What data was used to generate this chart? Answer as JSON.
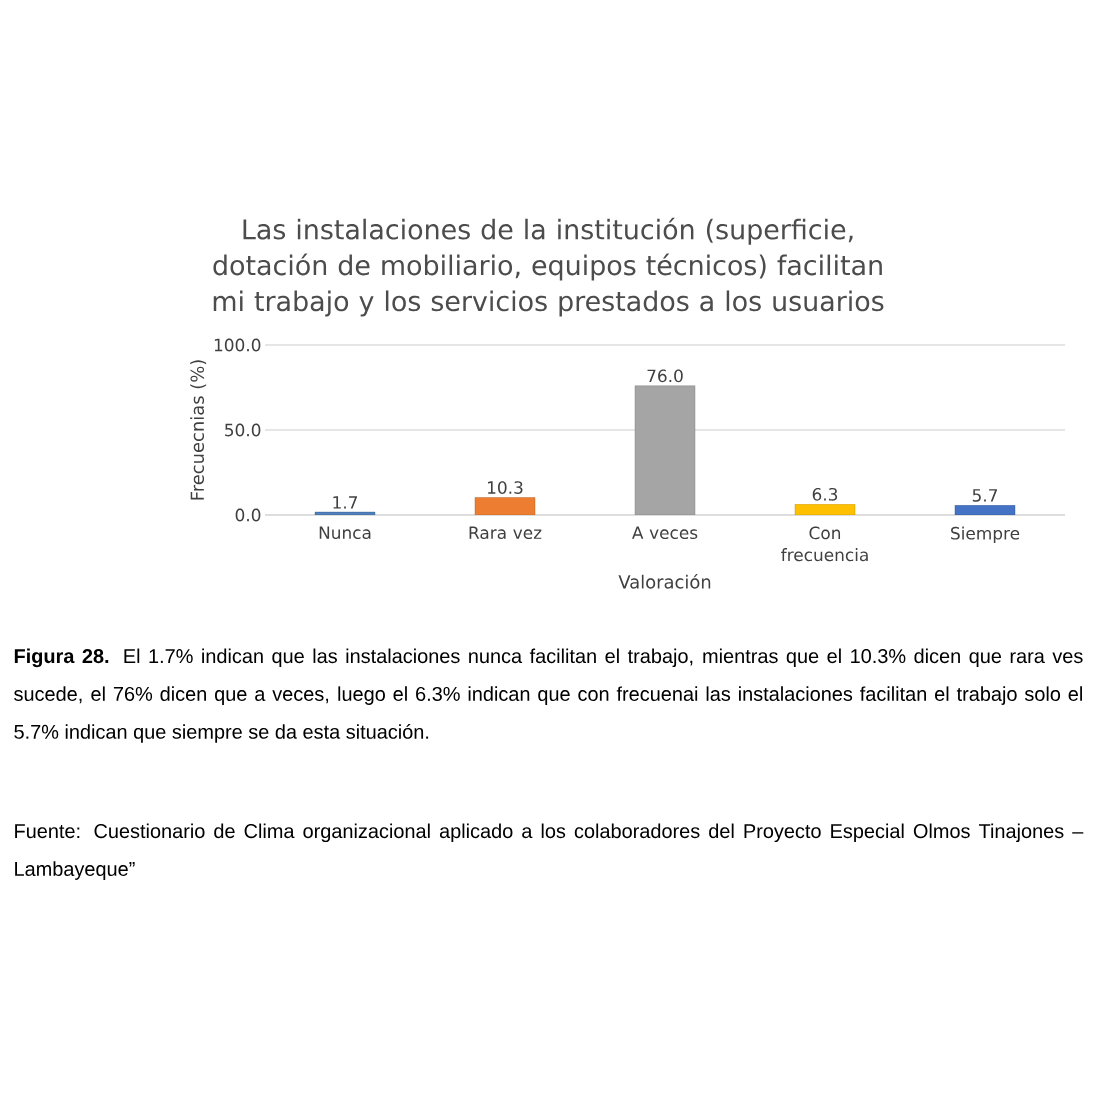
{
  "chart_data": {
    "type": "bar",
    "title": "Las instalaciones de la institución (superficie, dotación de mobiliario, equipos técnicos) facilitan mi trabajo y los servicios prestados a los usuarios",
    "xlabel": "Valoración",
    "ylabel": "Frecuecnias (%)",
    "categories": [
      "Nunca",
      "Rara vez",
      "A veces",
      "Con frecuencia",
      "Siempre"
    ],
    "values": [
      1.7,
      10.3,
      76.0,
      6.3,
      5.7
    ],
    "value_labels": [
      "1.7",
      "10.3",
      "76.0",
      "6.3",
      "5.7"
    ],
    "colors": [
      "#4e81bd",
      "#ed7d31",
      "#a5a5a5",
      "#ffc000",
      "#4472c4"
    ],
    "ylim": [
      0,
      100
    ],
    "yticks": [
      {
        "value": 0,
        "label": "0.0"
      },
      {
        "value": 50,
        "label": "50.0"
      },
      {
        "value": 100,
        "label": "100.0"
      }
    ],
    "grid": "y",
    "annotations": [
      "**Figura 28.** El 1.7% indican que las instalaciones nunca facilitan el trabajo, mientras que el 10.3% dicen que rara ves sucede, el 76% dicen que a veces, luego el 6.3% indican que con frecuenai las instalaciones facilitan el trabajo solo el 5.7% indican que siempre se da esta situación.",
      "Fuente: Cuestionario de Clima organizacional aplicado a los colaboradores del Proyecto Especial Olmos Tinajones – Lambayeque”"
    ]
  }
}
